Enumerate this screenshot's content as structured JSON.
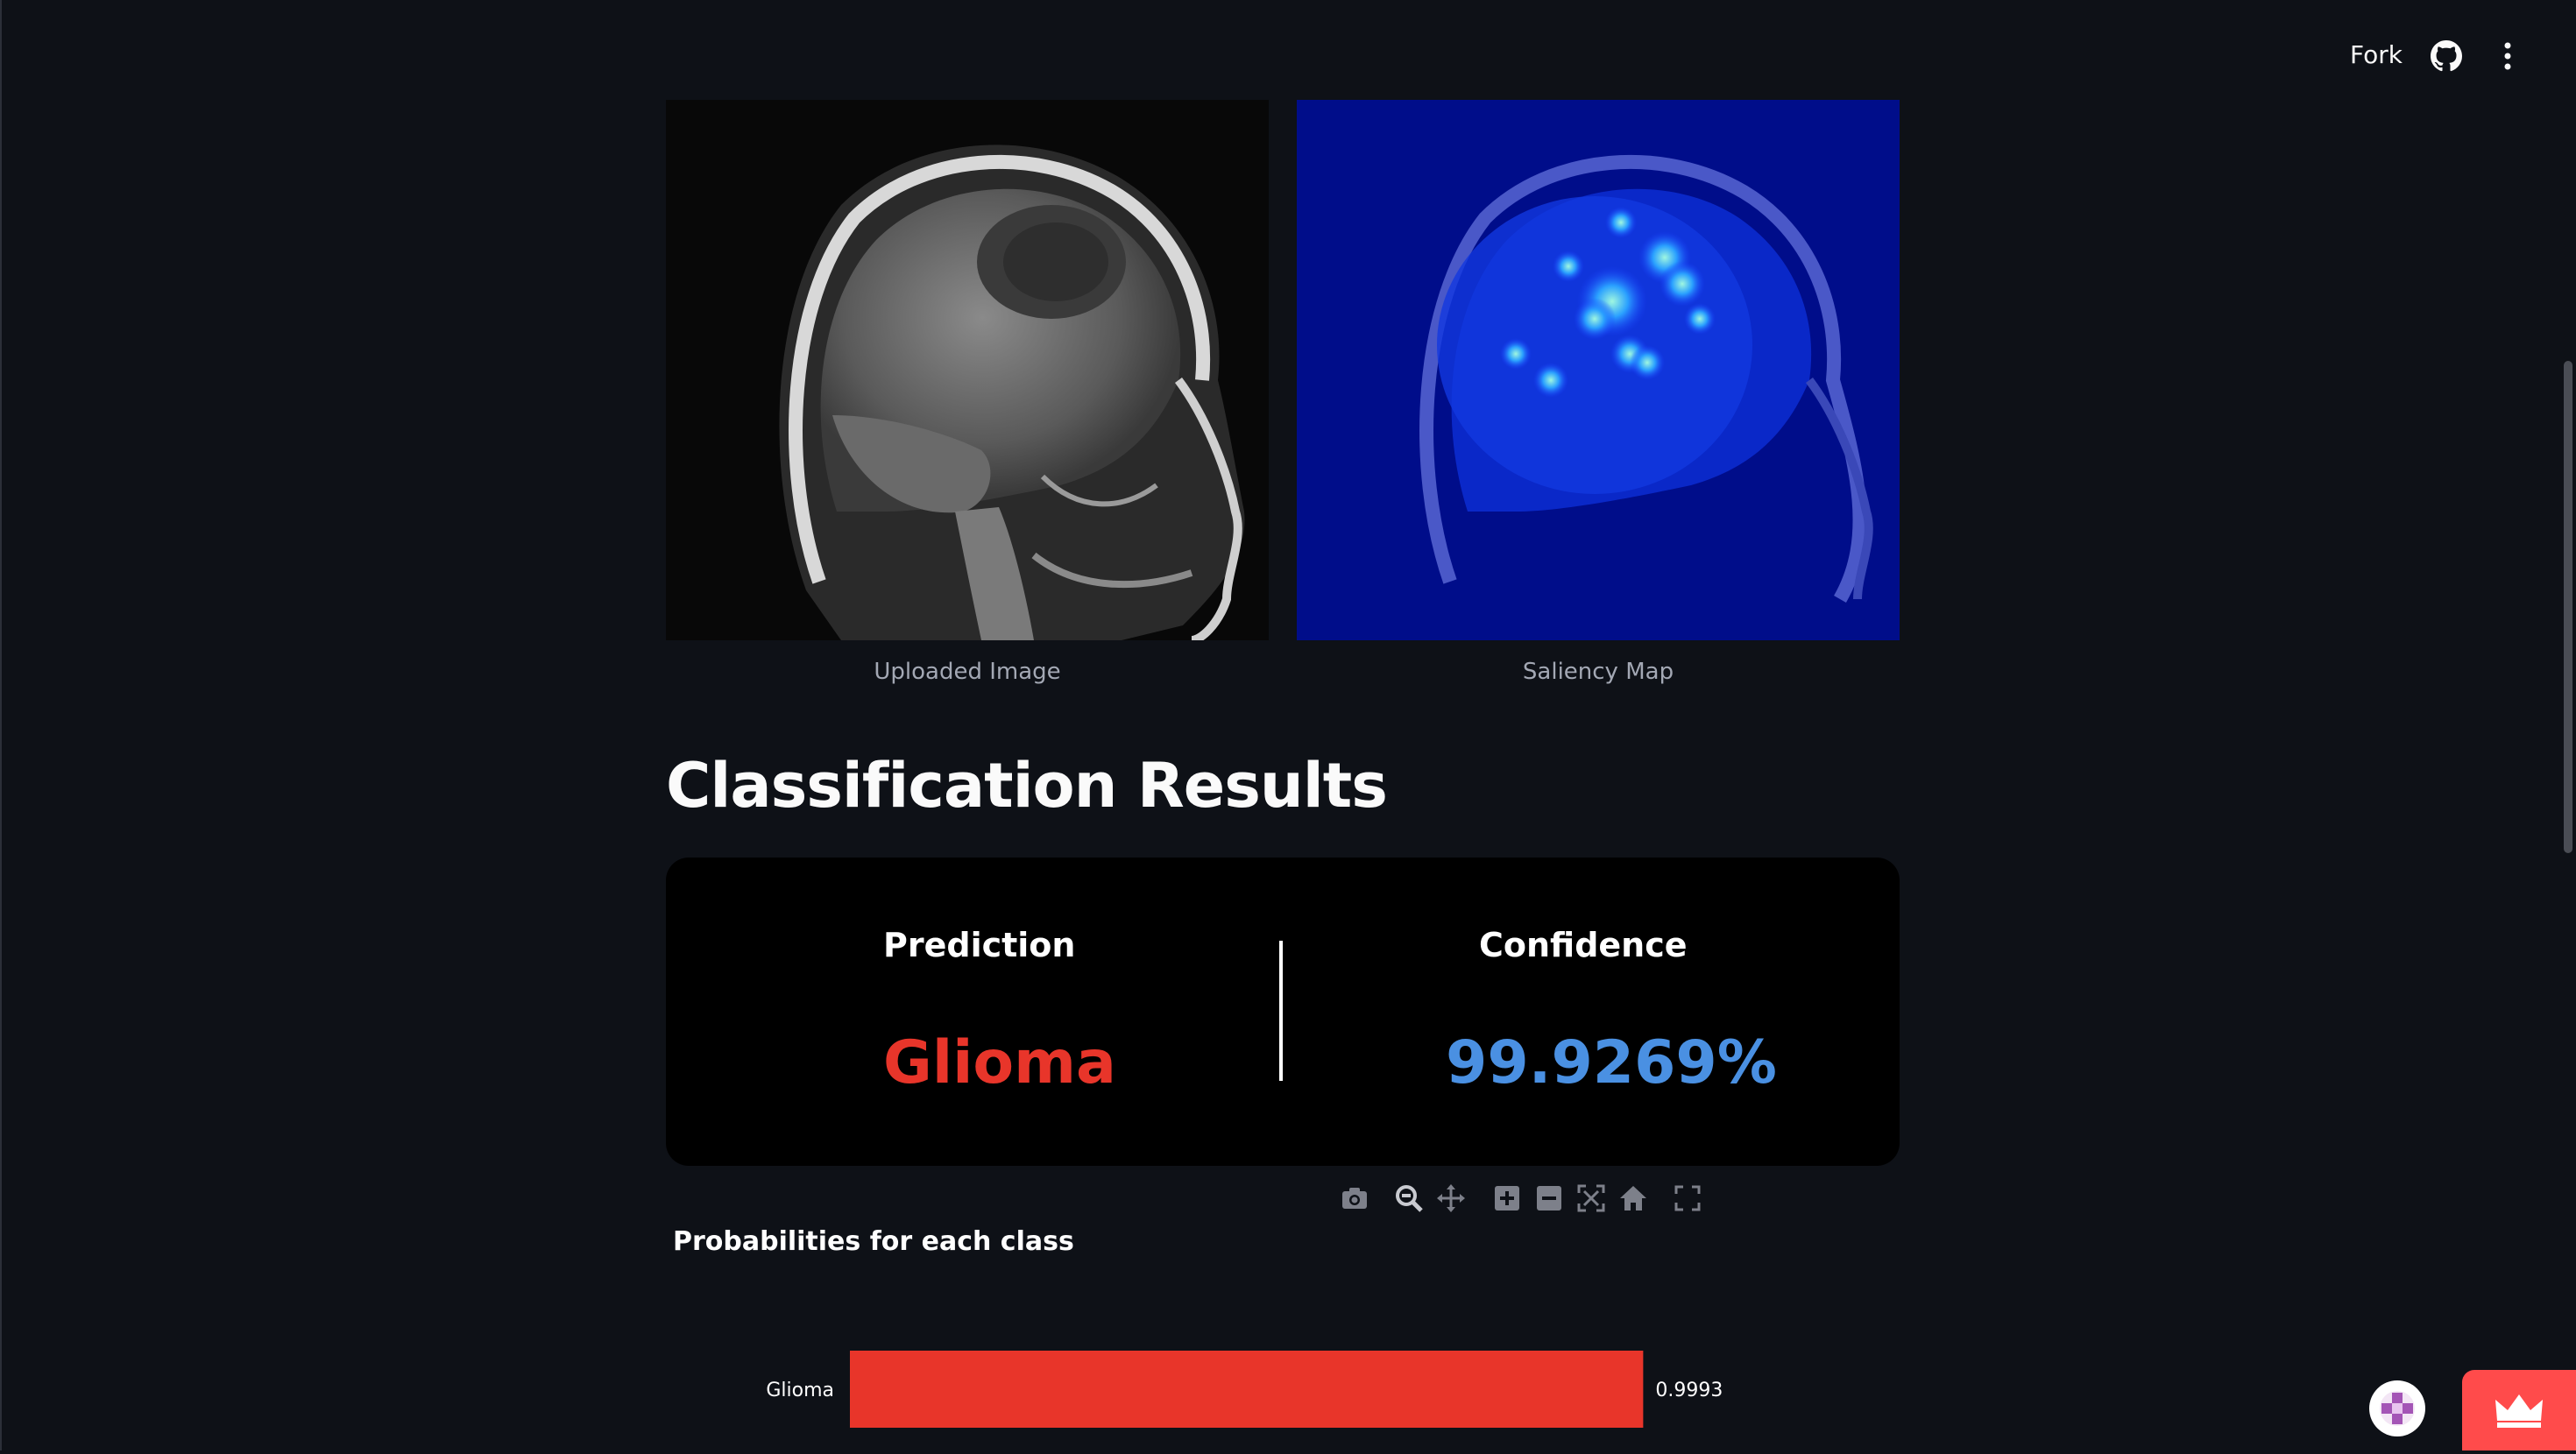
{
  "header": {
    "fork_label": "Fork",
    "github_icon": "github-icon",
    "menu_icon": "kebab-menu-icon"
  },
  "images": {
    "uploaded": {
      "caption": "Uploaded Image"
    },
    "saliency": {
      "caption": "Saliency Map"
    }
  },
  "results": {
    "title": "Classification Results",
    "prediction_label": "Prediction",
    "prediction_value": "Glioma",
    "confidence_label": "Confidence",
    "confidence_value": "99.9269%"
  },
  "toolbar": {
    "icons": [
      "camera-icon",
      "zoom-icon",
      "pan-icon",
      "zoom-in-icon",
      "zoom-out-icon",
      "autoscale-icon",
      "reset-axes-icon",
      "fullscreen-icon"
    ]
  },
  "chart_data": {
    "type": "bar",
    "orientation": "horizontal",
    "title": "Probabilities for each class",
    "categories": [
      "Glioma"
    ],
    "values": [
      0.9993
    ],
    "value_labels": [
      "0.9993"
    ],
    "xlim": [
      0,
      1
    ],
    "colors": [
      "#e8352a"
    ]
  },
  "colors": {
    "background": "#0e1117",
    "card": "#000000",
    "prediction": "#e8352a",
    "confidence": "#4a90e2",
    "accent": "#ff4b4b"
  }
}
